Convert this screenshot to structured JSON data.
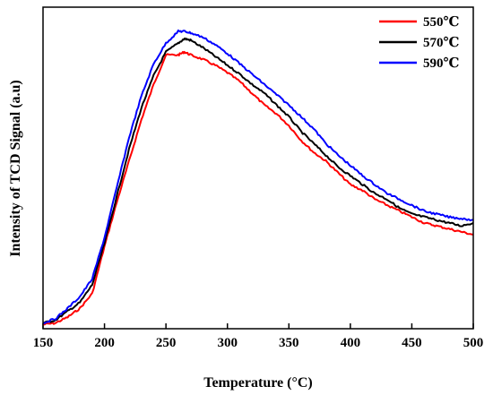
{
  "chart_data": {
    "type": "line",
    "title": "",
    "xlabel": "Temperature (°C)",
    "ylabel": "Intensity of TCD Signal (a.u)",
    "xlim": [
      150,
      500
    ],
    "ylim": [
      0,
      1
    ],
    "x_ticks": [
      "150",
      "200",
      "250",
      "300",
      "350",
      "400",
      "450",
      "500"
    ],
    "y_ticks_shown": false,
    "grid": false,
    "legend_position": "top-right",
    "series": [
      {
        "name": "550℃",
        "color": "#ff0000",
        "x": [
          150,
          160,
          170,
          180,
          190,
          200,
          210,
          220,
          230,
          240,
          250,
          260,
          265,
          270,
          280,
          290,
          300,
          310,
          320,
          330,
          340,
          350,
          360,
          370,
          380,
          390,
          400,
          410,
          420,
          430,
          440,
          450,
          460,
          470,
          480,
          490,
          500
        ],
        "y": [
          0.005,
          0.01,
          0.03,
          0.06,
          0.11,
          0.27,
          0.42,
          0.56,
          0.7,
          0.82,
          0.92,
          0.92,
          0.93,
          0.92,
          0.905,
          0.885,
          0.86,
          0.83,
          0.79,
          0.75,
          0.72,
          0.68,
          0.63,
          0.59,
          0.56,
          0.52,
          0.48,
          0.46,
          0.43,
          0.41,
          0.39,
          0.37,
          0.35,
          0.34,
          0.33,
          0.32,
          0.31
        ]
      },
      {
        "name": "570℃",
        "color": "#000000",
        "x": [
          150,
          160,
          170,
          180,
          190,
          200,
          210,
          220,
          230,
          240,
          250,
          260,
          265,
          270,
          280,
          290,
          300,
          310,
          320,
          330,
          340,
          350,
          360,
          370,
          380,
          390,
          400,
          410,
          420,
          430,
          440,
          450,
          460,
          470,
          480,
          490,
          500
        ],
        "y": [
          0.01,
          0.02,
          0.05,
          0.08,
          0.14,
          0.28,
          0.44,
          0.6,
          0.74,
          0.85,
          0.93,
          0.96,
          0.975,
          0.97,
          0.945,
          0.915,
          0.885,
          0.855,
          0.82,
          0.79,
          0.75,
          0.71,
          0.66,
          0.62,
          0.58,
          0.54,
          0.51,
          0.48,
          0.45,
          0.43,
          0.4,
          0.38,
          0.37,
          0.36,
          0.35,
          0.34,
          0.35
        ]
      },
      {
        "name": "590℃",
        "color": "#0000ff",
        "x": [
          150,
          160,
          170,
          180,
          190,
          200,
          210,
          220,
          230,
          240,
          250,
          260,
          265,
          270,
          280,
          290,
          300,
          310,
          320,
          330,
          340,
          350,
          360,
          370,
          380,
          390,
          400,
          410,
          420,
          430,
          440,
          450,
          460,
          470,
          480,
          490,
          500
        ],
        "y": [
          0.01,
          0.025,
          0.06,
          0.1,
          0.16,
          0.3,
          0.47,
          0.64,
          0.78,
          0.89,
          0.96,
          1.0,
          1.0,
          0.995,
          0.98,
          0.955,
          0.925,
          0.89,
          0.855,
          0.82,
          0.785,
          0.75,
          0.71,
          0.67,
          0.62,
          0.58,
          0.545,
          0.51,
          0.48,
          0.45,
          0.43,
          0.41,
          0.39,
          0.38,
          0.37,
          0.365,
          0.36
        ]
      }
    ]
  }
}
